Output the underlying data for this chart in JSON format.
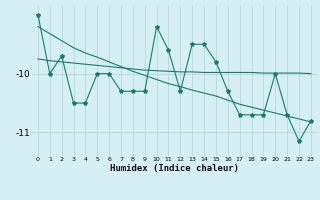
{
  "title": "",
  "xlabel": "Humidex (Indice chaleur)",
  "bg_color": "#d6eff5",
  "line_color": "#1a7a6e",
  "grid_color": "#b8d8de",
  "x": [
    0,
    1,
    2,
    3,
    4,
    5,
    6,
    7,
    8,
    9,
    10,
    11,
    12,
    13,
    14,
    15,
    16,
    17,
    18,
    19,
    20,
    21,
    22,
    23
  ],
  "y_main": [
    -9.0,
    -10.0,
    -9.7,
    -10.5,
    -10.5,
    -10.0,
    -10.0,
    -10.3,
    -10.3,
    -10.3,
    -9.2,
    -9.6,
    -10.3,
    -9.5,
    -9.5,
    -9.8,
    -10.3,
    -10.7,
    -10.7,
    -10.7,
    -10.0,
    -10.7,
    -11.15,
    -10.8
  ],
  "y_trend1": [
    -9.75,
    -9.78,
    -9.8,
    -9.82,
    -9.84,
    -9.86,
    -9.88,
    -9.9,
    -9.92,
    -9.94,
    -9.95,
    -9.96,
    -9.97,
    -9.97,
    -9.98,
    -9.98,
    -9.98,
    -9.98,
    -9.98,
    -9.99,
    -9.99,
    -9.99,
    -9.99,
    -10.0
  ],
  "y_trend2": [
    -9.2,
    -9.32,
    -9.44,
    -9.56,
    -9.65,
    -9.72,
    -9.8,
    -9.88,
    -9.96,
    -10.03,
    -10.1,
    -10.17,
    -10.22,
    -10.28,
    -10.33,
    -10.38,
    -10.45,
    -10.52,
    -10.57,
    -10.62,
    -10.67,
    -10.72,
    -10.77,
    -10.82
  ],
  "ylim": [
    -11.4,
    -8.85
  ],
  "yticks": [
    -11.0,
    -10.0
  ],
  "ytick_labels": [
    "-11",
    "-10"
  ],
  "xlim": [
    -0.5,
    23.5
  ],
  "xticks": [
    0,
    1,
    2,
    3,
    4,
    5,
    6,
    7,
    8,
    9,
    10,
    11,
    12,
    13,
    14,
    15,
    16,
    17,
    18,
    19,
    20,
    21,
    22,
    23
  ],
  "xtick_labels": [
    "0",
    "1",
    "2",
    "3",
    "4",
    "5",
    "6",
    "7",
    "8",
    "9",
    "10",
    "11",
    "12",
    "13",
    "14",
    "15",
    "16",
    "17",
    "18",
    "19",
    "20",
    "21",
    "22",
    "23"
  ]
}
